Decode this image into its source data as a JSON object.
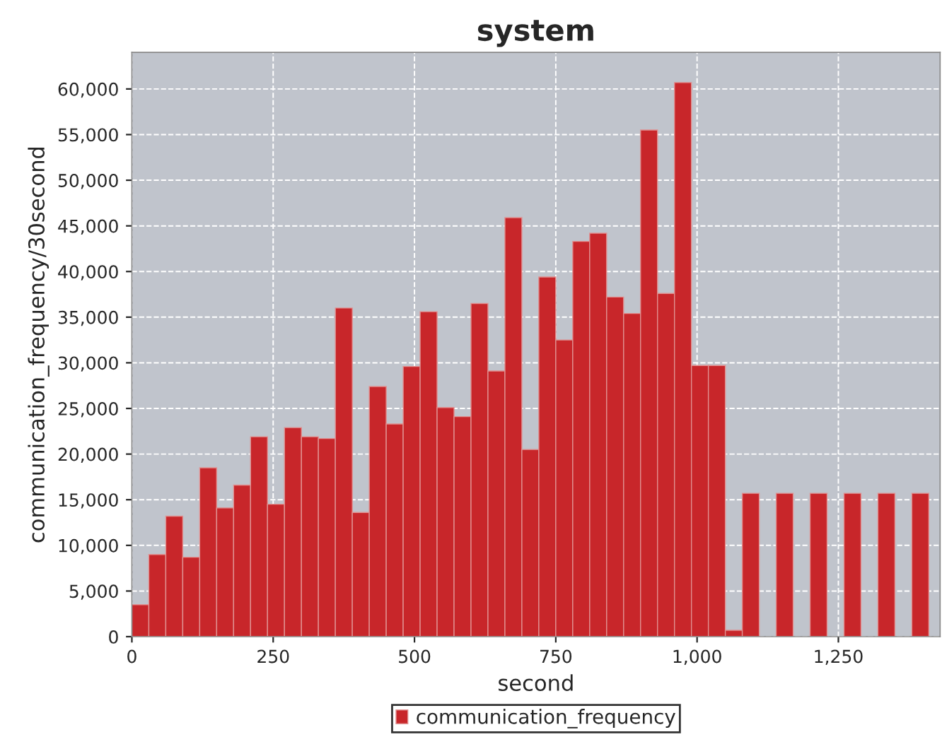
{
  "chart_data": {
    "type": "histogram",
    "title": "system",
    "xlabel": "second",
    "ylabel": "communication_frequency/30second",
    "bins": [
      0,
      30,
      60,
      90,
      120,
      150,
      180,
      210,
      240,
      270,
      300,
      330,
      360,
      390,
      420,
      450,
      480,
      510,
      540,
      570,
      600,
      630,
      660,
      690,
      720,
      750,
      780,
      810,
      840,
      870,
      900,
      930,
      960,
      990,
      1020,
      1050,
      1080,
      1110,
      1140,
      1170,
      1200,
      1230,
      1260,
      1290,
      1320,
      1350,
      1380,
      1410
    ],
    "series": [
      {
        "name": "communication_frequency",
        "color": "#c8262a",
        "values": [
          3500,
          9000,
          13200,
          8700,
          18500,
          14100,
          16600,
          21900,
          14500,
          22900,
          21900,
          21700,
          36000,
          13600,
          27400,
          23300,
          29600,
          35600,
          25100,
          24100,
          36500,
          29100,
          45900,
          20500,
          39400,
          32500,
          43300,
          44200,
          37200,
          35400,
          55500,
          37600,
          60700,
          29700,
          29700,
          700,
          15700,
          0,
          15700,
          0,
          15700,
          0,
          15700,
          0,
          15700,
          0,
          15700
        ]
      }
    ],
    "xlim": [
      0,
      1430
    ],
    "ylim": [
      0,
      64000
    ],
    "xticks": [
      0,
      250,
      500,
      750,
      {
        "value": 1000,
        "label": "1,000"
      },
      {
        "value": 1250,
        "label": "1,250"
      }
    ],
    "yticks": [
      0,
      {
        "value": 5000,
        "label": "5,000"
      },
      {
        "value": 10000,
        "label": "10,000"
      },
      {
        "value": 15000,
        "label": "15,000"
      },
      {
        "value": 20000,
        "label": "20,000"
      },
      {
        "value": 25000,
        "label": "25,000"
      },
      {
        "value": 30000,
        "label": "30,000"
      },
      {
        "value": 35000,
        "label": "35,000"
      },
      {
        "value": 40000,
        "label": "40,000"
      },
      {
        "value": 45000,
        "label": "45,000"
      },
      {
        "value": 50000,
        "label": "50,000"
      },
      {
        "value": 55000,
        "label": "55,000"
      },
      {
        "value": 60000,
        "label": "60,000"
      }
    ],
    "grid": true,
    "legend": "bottom"
  }
}
